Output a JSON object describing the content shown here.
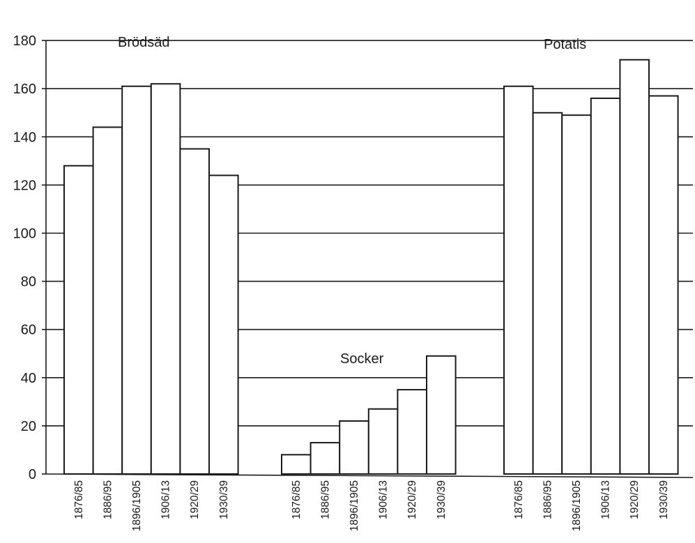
{
  "chart_data": {
    "type": "bar",
    "ylim": [
      0,
      180
    ],
    "yticks": [
      0,
      20,
      40,
      60,
      80,
      100,
      120,
      140,
      160,
      180
    ],
    "grid": "horizontal, hidden behind bars",
    "groups": [
      {
        "name": "Brödsäd",
        "categories": [
          "1876/85",
          "1886/95",
          "1896/1905",
          "1906/13",
          "1920/29",
          "1930/39"
        ],
        "values": [
          128,
          144,
          161,
          162,
          135,
          124
        ]
      },
      {
        "name": "Socker",
        "categories": [
          "1876/85",
          "1886/95",
          "1896/1905",
          "1906/13",
          "1920/29",
          "1930/39"
        ],
        "values": [
          8,
          13,
          22,
          27,
          35,
          49
        ]
      },
      {
        "name": "Potatis",
        "categories": [
          "1876/85",
          "1886/95",
          "1896/1905",
          "1906/13",
          "1920/29",
          "1930/39"
        ],
        "values": [
          161,
          150,
          149,
          156,
          172,
          157
        ]
      }
    ]
  }
}
